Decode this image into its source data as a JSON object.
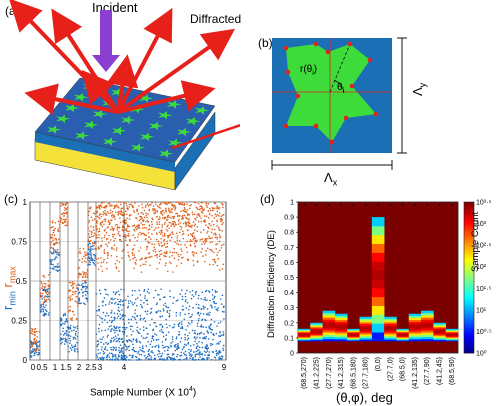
{
  "panel_a": {
    "label": "(a)",
    "incident_label": "Incident",
    "diffracted_label": "Diffracted"
  },
  "panel_b": {
    "label": "(b)",
    "radius_label": "r(θ",
    "radius_sub": "i",
    "radius_close": ")",
    "theta_label": "θ",
    "theta_sub": "i",
    "period_x": "Λ",
    "period_x_sub": "x",
    "period_y": "Λ",
    "period_y_sub": "y"
  },
  "panel_c": {
    "label": "(c)",
    "y_label_min": "r",
    "y_label_min_sub": "min",
    "y_label_max": "r",
    "y_label_max_sub": "max",
    "x_label": "Sample Number (X 10",
    "x_label_exp": "4",
    "x_label_close": ")",
    "chart_data": {
      "type": "scatter",
      "ylim": [
        0,
        1
      ],
      "y_ticks": [
        "0",
        "0.25",
        "0.5",
        "0.75",
        "1"
      ],
      "x_ticks": [
        "0",
        "0.5",
        "1",
        "1.5",
        "2",
        "2.5",
        "3",
        "4",
        "9"
      ],
      "series": [
        {
          "name": "rmin",
          "color": "#1f6fc2"
        },
        {
          "name": "rmax",
          "color": "#e0601c"
        }
      ],
      "grid": true
    }
  },
  "panel_d": {
    "label": "(d)",
    "y_label": "Diffraction Efficiency (DE)",
    "x_label": "(θ,φ), deg",
    "colorbar_label": "Sample Count",
    "chart_data": {
      "type": "heatmap",
      "ylim": [
        0,
        1
      ],
      "y_ticks": [
        "0",
        "0.1",
        "0.2",
        "0.3",
        "0.4",
        "0.5",
        "0.6",
        "0.7",
        "0.8",
        "0.9",
        "1"
      ],
      "categories": [
        "(68.5,270)",
        "(41.2,225)",
        "(27.7,270)",
        "(41.2,315)",
        "(68.5,180)",
        "(27.7,180)",
        "(0,0)",
        "(27.7,0)",
        "(68.5,0)",
        "(41.2,135)",
        "(27.7,90)",
        "(41.2,45)",
        "(68.5,90)"
      ],
      "peak_de": [
        0.16,
        0.2,
        0.28,
        0.26,
        0.16,
        0.24,
        0.9,
        0.24,
        0.16,
        0.26,
        0.28,
        0.2,
        0.16
      ],
      "colorbar_ticks": [
        "10⁰",
        "10⁰·⁵",
        "10¹",
        "10¹·⁵",
        "10²",
        "10²·⁵",
        "10³",
        "10³·⁵"
      ],
      "colorbar_range": [
        0,
        3.5
      ]
    }
  }
}
